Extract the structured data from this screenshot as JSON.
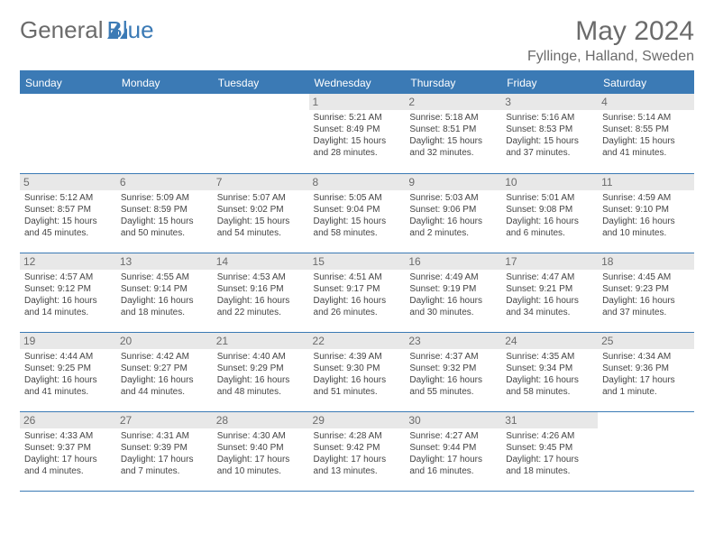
{
  "brand": {
    "part1": "General",
    "part2": "Blue"
  },
  "title": "May 2024",
  "location": "Fyllinge, Halland, Sweden",
  "colors": {
    "header_bg": "#3b7ab5",
    "header_text": "#ffffff",
    "daynum_bg": "#e8e8e8",
    "text": "#6b6b6b",
    "border": "#3b7ab5",
    "background": "#ffffff"
  },
  "day_headers": [
    "Sunday",
    "Monday",
    "Tuesday",
    "Wednesday",
    "Thursday",
    "Friday",
    "Saturday"
  ],
  "weeks": [
    [
      null,
      null,
      null,
      {
        "d": "1",
        "sr": "5:21 AM",
        "ss": "8:49 PM",
        "dl": "15 hours and 28 minutes."
      },
      {
        "d": "2",
        "sr": "5:18 AM",
        "ss": "8:51 PM",
        "dl": "15 hours and 32 minutes."
      },
      {
        "d": "3",
        "sr": "5:16 AM",
        "ss": "8:53 PM",
        "dl": "15 hours and 37 minutes."
      },
      {
        "d": "4",
        "sr": "5:14 AM",
        "ss": "8:55 PM",
        "dl": "15 hours and 41 minutes."
      }
    ],
    [
      {
        "d": "5",
        "sr": "5:12 AM",
        "ss": "8:57 PM",
        "dl": "15 hours and 45 minutes."
      },
      {
        "d": "6",
        "sr": "5:09 AM",
        "ss": "8:59 PM",
        "dl": "15 hours and 50 minutes."
      },
      {
        "d": "7",
        "sr": "5:07 AM",
        "ss": "9:02 PM",
        "dl": "15 hours and 54 minutes."
      },
      {
        "d": "8",
        "sr": "5:05 AM",
        "ss": "9:04 PM",
        "dl": "15 hours and 58 minutes."
      },
      {
        "d": "9",
        "sr": "5:03 AM",
        "ss": "9:06 PM",
        "dl": "16 hours and 2 minutes."
      },
      {
        "d": "10",
        "sr": "5:01 AM",
        "ss": "9:08 PM",
        "dl": "16 hours and 6 minutes."
      },
      {
        "d": "11",
        "sr": "4:59 AM",
        "ss": "9:10 PM",
        "dl": "16 hours and 10 minutes."
      }
    ],
    [
      {
        "d": "12",
        "sr": "4:57 AM",
        "ss": "9:12 PM",
        "dl": "16 hours and 14 minutes."
      },
      {
        "d": "13",
        "sr": "4:55 AM",
        "ss": "9:14 PM",
        "dl": "16 hours and 18 minutes."
      },
      {
        "d": "14",
        "sr": "4:53 AM",
        "ss": "9:16 PM",
        "dl": "16 hours and 22 minutes."
      },
      {
        "d": "15",
        "sr": "4:51 AM",
        "ss": "9:17 PM",
        "dl": "16 hours and 26 minutes."
      },
      {
        "d": "16",
        "sr": "4:49 AM",
        "ss": "9:19 PM",
        "dl": "16 hours and 30 minutes."
      },
      {
        "d": "17",
        "sr": "4:47 AM",
        "ss": "9:21 PM",
        "dl": "16 hours and 34 minutes."
      },
      {
        "d": "18",
        "sr": "4:45 AM",
        "ss": "9:23 PM",
        "dl": "16 hours and 37 minutes."
      }
    ],
    [
      {
        "d": "19",
        "sr": "4:44 AM",
        "ss": "9:25 PM",
        "dl": "16 hours and 41 minutes."
      },
      {
        "d": "20",
        "sr": "4:42 AM",
        "ss": "9:27 PM",
        "dl": "16 hours and 44 minutes."
      },
      {
        "d": "21",
        "sr": "4:40 AM",
        "ss": "9:29 PM",
        "dl": "16 hours and 48 minutes."
      },
      {
        "d": "22",
        "sr": "4:39 AM",
        "ss": "9:30 PM",
        "dl": "16 hours and 51 minutes."
      },
      {
        "d": "23",
        "sr": "4:37 AM",
        "ss": "9:32 PM",
        "dl": "16 hours and 55 minutes."
      },
      {
        "d": "24",
        "sr": "4:35 AM",
        "ss": "9:34 PM",
        "dl": "16 hours and 58 minutes."
      },
      {
        "d": "25",
        "sr": "4:34 AM",
        "ss": "9:36 PM",
        "dl": "17 hours and 1 minute."
      }
    ],
    [
      {
        "d": "26",
        "sr": "4:33 AM",
        "ss": "9:37 PM",
        "dl": "17 hours and 4 minutes."
      },
      {
        "d": "27",
        "sr": "4:31 AM",
        "ss": "9:39 PM",
        "dl": "17 hours and 7 minutes."
      },
      {
        "d": "28",
        "sr": "4:30 AM",
        "ss": "9:40 PM",
        "dl": "17 hours and 10 minutes."
      },
      {
        "d": "29",
        "sr": "4:28 AM",
        "ss": "9:42 PM",
        "dl": "17 hours and 13 minutes."
      },
      {
        "d": "30",
        "sr": "4:27 AM",
        "ss": "9:44 PM",
        "dl": "17 hours and 16 minutes."
      },
      {
        "d": "31",
        "sr": "4:26 AM",
        "ss": "9:45 PM",
        "dl": "17 hours and 18 minutes."
      },
      null
    ]
  ],
  "labels": {
    "sunrise": "Sunrise:",
    "sunset": "Sunset:",
    "daylight": "Daylight:"
  }
}
